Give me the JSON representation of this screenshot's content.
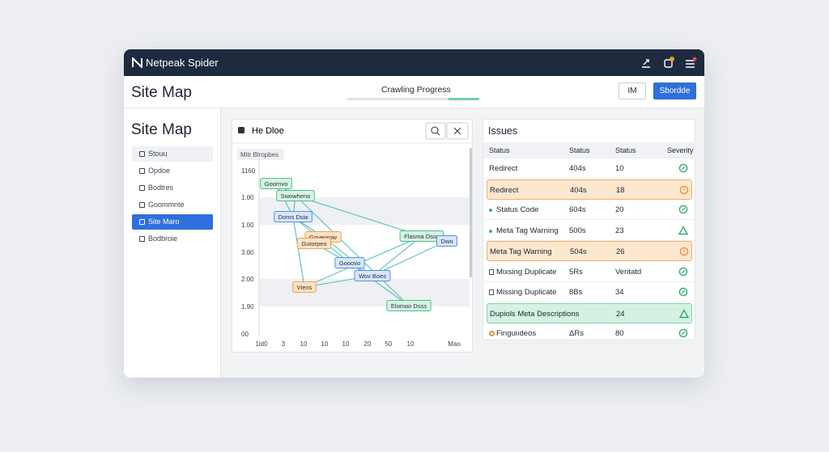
{
  "app": {
    "title": "Netpeak Spider"
  },
  "toolbar": {
    "page_title": "Site Map",
    "progress_label": "Crawling Progress",
    "buttons": [
      "IM",
      "Sbordde"
    ]
  },
  "sidebar": {
    "title": "Site Map",
    "items": [
      "Stouu",
      "Opdoe",
      "Bodtres",
      "Goommnte",
      "Site Maro",
      "Bodbroie"
    ]
  },
  "graph": {
    "title": "He Dloe",
    "legend": "Mitr Blropbes",
    "y_labels": [
      "1160",
      "1.00",
      "1.00",
      "3.00",
      "2.00",
      "1.90",
      "00"
    ],
    "x_labels": [
      "1ld0",
      "3",
      "10",
      "10",
      "10",
      "20",
      "50",
      "10",
      "Mao"
    ],
    "nodes": [
      "Goornvo",
      "Swowheno",
      "Doms Dsia",
      "Goveorow",
      "Gutorpeo",
      "Gooovo",
      "Wov Boes",
      "Viens",
      "Flasma Dsos",
      "Dwo",
      "Elomoo Dsss"
    ]
  },
  "issues": {
    "title": "Issues",
    "columns": [
      "Status",
      "Status",
      "Status",
      "Severity"
    ],
    "rows": [
      [
        "Redirect",
        "404s",
        "10"
      ],
      [
        "Redirect",
        "404s",
        "18"
      ],
      [
        "Status Code",
        "604s",
        "20"
      ],
      [
        "Meta Tag Warning",
        "500s",
        "23"
      ],
      [
        "Meta Tag Warning",
        "504s",
        "26"
      ],
      [
        "Mixsing Duplicate",
        "5Rs",
        "Veritatd"
      ],
      [
        "Missing Duplicate",
        "8Bs",
        "34"
      ],
      [
        "Dupiols Meta Descriptions",
        "",
        "24"
      ],
      [
        "Finguiıdeos",
        "ΔRs",
        "80"
      ]
    ]
  }
}
